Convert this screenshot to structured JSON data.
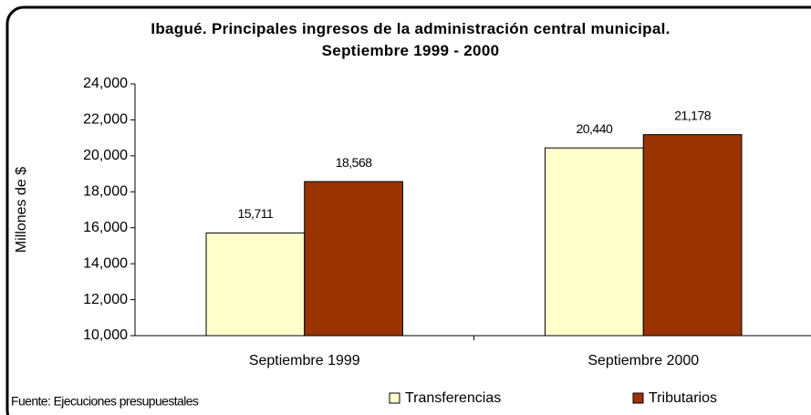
{
  "chart_data": {
    "type": "bar",
    "title": "Ibagué. Principales ingresos de la administración central municipal. Septiembre 1999 - 2000",
    "ylabel": "Millones de $",
    "source": "Fuente: Ejecuciones presupuestales",
    "categories": [
      "Septiembre 1999",
      "Septiembre 2000"
    ],
    "series": [
      {
        "name": "Transferencias",
        "color": "#ffffcc",
        "values": [
          15711,
          20440
        ],
        "value_labels": [
          "15,711",
          "20,440"
        ]
      },
      {
        "name": "Tributarios",
        "color": "#993300",
        "values": [
          18568,
          21178
        ],
        "value_labels": [
          "18,568",
          "21,178"
        ]
      }
    ],
    "ylim": [
      10000,
      24000
    ],
    "yticks": [
      {
        "value": 10000,
        "label": "10,000"
      },
      {
        "value": 12000,
        "label": "12,000"
      },
      {
        "value": 14000,
        "label": "14,000"
      },
      {
        "value": 16000,
        "label": "16,000"
      },
      {
        "value": 18000,
        "label": "18,000"
      },
      {
        "value": 20000,
        "label": "20,000"
      },
      {
        "value": 22000,
        "label": "22,000"
      },
      {
        "value": 24000,
        "label": "24,000"
      }
    ],
    "grid": false,
    "legend": "bottom"
  }
}
